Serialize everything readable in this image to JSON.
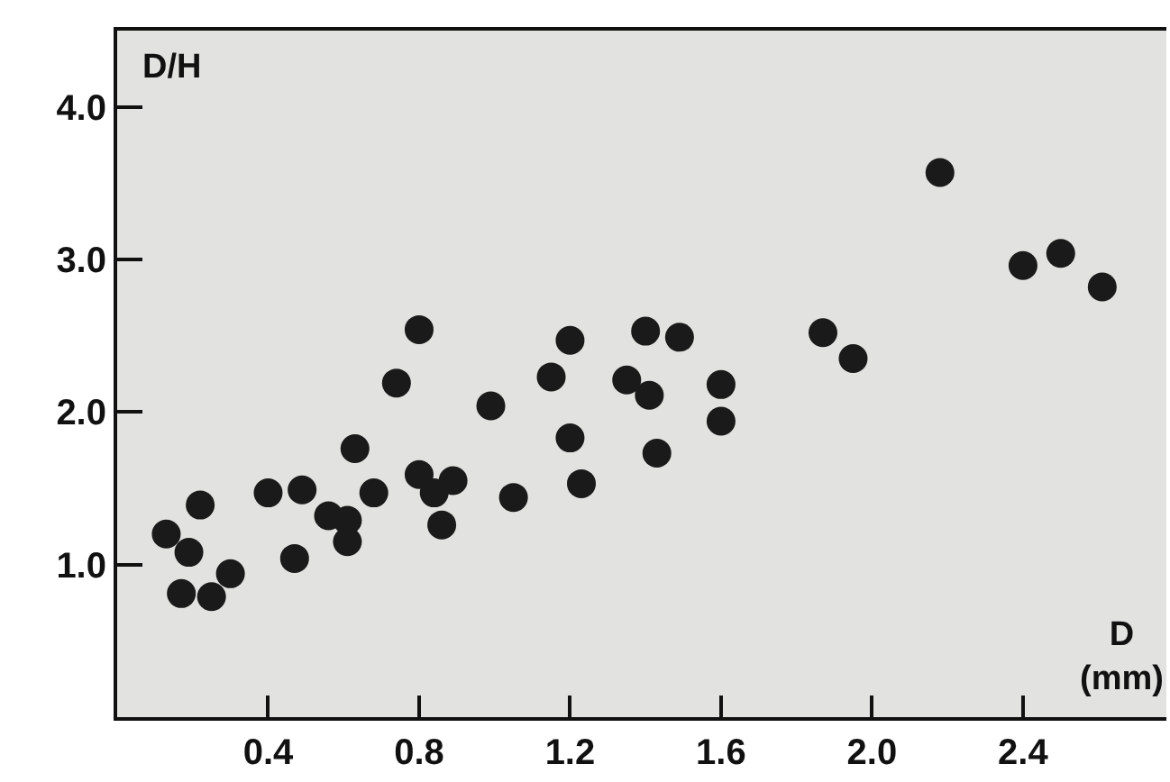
{
  "chart_data": {
    "type": "scatter",
    "xlabel": "D\n(mm)",
    "ylabel": "D/H",
    "x": [
      0.13,
      0.19,
      0.22,
      0.17,
      0.25,
      0.3,
      0.4,
      0.47,
      0.49,
      0.56,
      0.61,
      0.61,
      0.63,
      0.68,
      0.74,
      0.8,
      0.8,
      0.84,
      0.89,
      0.86,
      0.99,
      1.05,
      1.15,
      1.2,
      1.2,
      1.23,
      1.35,
      1.4,
      1.41,
      1.43,
      1.49,
      1.6,
      1.6,
      1.87,
      1.95,
      2.18,
      2.4,
      2.5,
      2.61
    ],
    "series": [
      {
        "color": "#1a1a1a",
        "values": [
          1.2,
          1.08,
          1.39,
          0.81,
          0.79,
          0.94,
          1.47,
          1.04,
          1.49,
          1.32,
          1.29,
          1.15,
          1.76,
          1.47,
          2.19,
          2.54,
          1.59,
          1.47,
          1.55,
          1.26,
          2.04,
          1.44,
          2.23,
          2.47,
          1.83,
          1.53,
          2.21,
          2.53,
          2.11,
          1.73,
          2.49,
          2.18,
          1.94,
          2.52,
          2.35,
          3.57,
          2.96,
          3.04,
          2.82
        ]
      }
    ],
    "xlim": [
      0,
      2.78
    ],
    "ylim": [
      0,
      4.5
    ],
    "xticks": [
      0.4,
      0.8,
      1.2,
      1.6,
      {
        "value": 2,
        "label": "2.0"
      },
      2.4
    ],
    "yticks": [
      {
        "value": 1,
        "label": "1.0"
      },
      {
        "value": 2,
        "label": "2.0"
      },
      {
        "value": 3,
        "label": "3.0"
      },
      {
        "value": 4,
        "label": "4.0"
      }
    ],
    "grid": false,
    "marker": "circle"
  }
}
